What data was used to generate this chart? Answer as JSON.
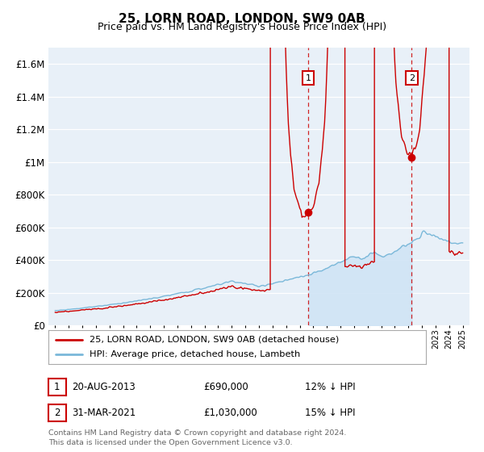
{
  "title": "25, LORN ROAD, LONDON, SW9 0AB",
  "subtitle": "Price paid vs. HM Land Registry's House Price Index (HPI)",
  "title_fontsize": 11,
  "subtitle_fontsize": 9,
  "hpi_color": "#7ab8d9",
  "price_color": "#cc0000",
  "marker1_x": 2013.62,
  "marker1_y": 690000,
  "marker2_x": 2021.25,
  "marker2_y": 1030000,
  "marker1_label": "20-AUG-2013",
  "marker1_price": "£690,000",
  "marker1_hpi": "12% ↓ HPI",
  "marker2_label": "31-MAR-2021",
  "marker2_price": "£1,030,000",
  "marker2_hpi": "15% ↓ HPI",
  "legend1": "25, LORN ROAD, LONDON, SW9 0AB (detached house)",
  "legend2": "HPI: Average price, detached house, Lambeth",
  "footer": "Contains HM Land Registry data © Crown copyright and database right 2024.\nThis data is licensed under the Open Government Licence v3.0.",
  "ylim": [
    0,
    1700000
  ],
  "xlim": [
    1994.5,
    2025.5
  ],
  "background_color": "#ffffff",
  "plot_bg_color": "#e8f0f8",
  "shade_color": "#d0e4f5"
}
